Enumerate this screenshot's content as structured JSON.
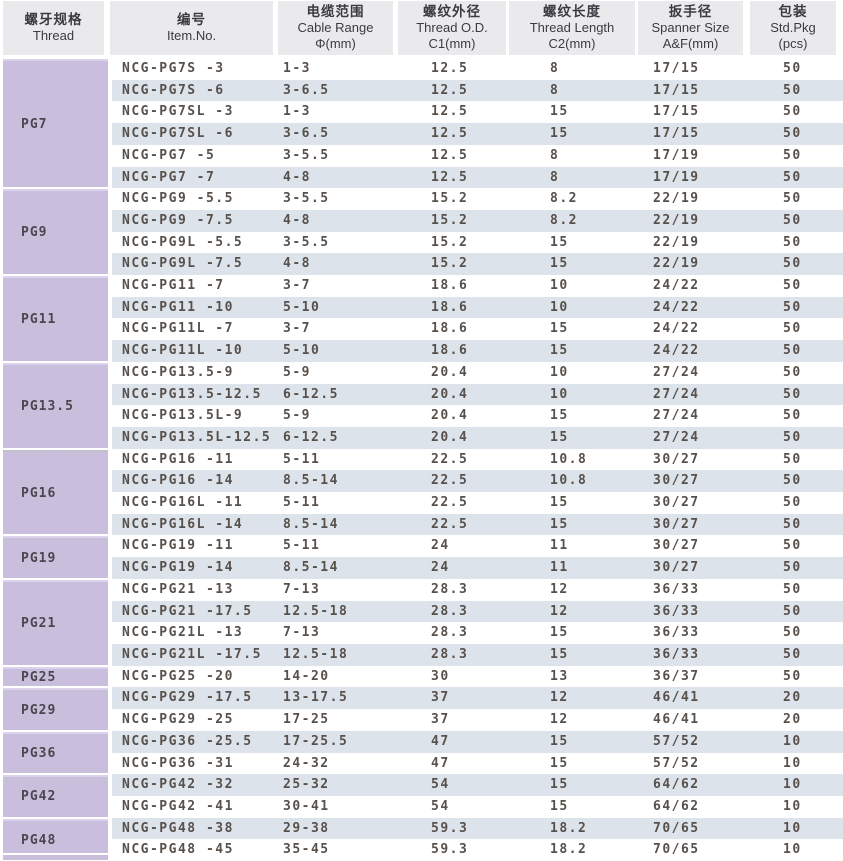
{
  "table": {
    "columns": [
      {
        "zh": "螺牙规格",
        "en": "Thread",
        "sub": ""
      },
      {
        "zh": "编号",
        "en": "Item.No.",
        "sub": ""
      },
      {
        "zh": "电缆范围",
        "en": "Cable Range",
        "sub": "Φ(mm)"
      },
      {
        "zh": "螺纹外径",
        "en": "Thread O.D.",
        "sub": "C1(mm)"
      },
      {
        "zh": "螺纹长度",
        "en": "Thread Length",
        "sub": "C2(mm)"
      },
      {
        "zh": "扳手径",
        "en": "Spanner Size",
        "sub": "A&F(mm)"
      },
      {
        "zh": "包装",
        "en": "Std.Pkg",
        "sub": "(pcs)"
      }
    ],
    "groups": [
      {
        "thread": "PG7",
        "rows": [
          [
            "NCG-PG7S -3",
            "1-3",
            "12.5",
            "8",
            "17/15",
            "50"
          ],
          [
            "NCG-PG7S -6",
            "3-6.5",
            "12.5",
            "8",
            "17/15",
            "50"
          ],
          [
            "NCG-PG7SL -3",
            "1-3",
            "12.5",
            "15",
            "17/15",
            "50"
          ],
          [
            "NCG-PG7SL -6",
            "3-6.5",
            "12.5",
            "15",
            "17/15",
            "50"
          ],
          [
            "NCG-PG7 -5",
            "3-5.5",
            "12.5",
            "8",
            "17/19",
            "50"
          ],
          [
            "NCG-PG7 -7",
            "4-8",
            "12.5",
            "8",
            "17/19",
            "50"
          ]
        ]
      },
      {
        "thread": "PG9",
        "rows": [
          [
            "NCG-PG9 -5.5",
            "3-5.5",
            "15.2",
            "8.2",
            "22/19",
            "50"
          ],
          [
            "NCG-PG9 -7.5",
            "4-8",
            "15.2",
            "8.2",
            "22/19",
            "50"
          ],
          [
            "NCG-PG9L -5.5",
            "3-5.5",
            "15.2",
            "15",
            "22/19",
            "50"
          ],
          [
            "NCG-PG9L -7.5",
            "4-8",
            "15.2",
            "15",
            "22/19",
            "50"
          ]
        ]
      },
      {
        "thread": "PG11",
        "rows": [
          [
            "NCG-PG11 -7",
            "3-7",
            "18.6",
            "10",
            "24/22",
            "50"
          ],
          [
            "NCG-PG11 -10",
            "5-10",
            "18.6",
            "10",
            "24/22",
            "50"
          ],
          [
            "NCG-PG11L -7",
            "3-7",
            "18.6",
            "15",
            "24/22",
            "50"
          ],
          [
            "NCG-PG11L -10",
            "5-10",
            "18.6",
            "15",
            "24/22",
            "50"
          ]
        ]
      },
      {
        "thread": "PG13.5",
        "rows": [
          [
            "NCG-PG13.5-9",
            "5-9",
            "20.4",
            "10",
            "27/24",
            "50"
          ],
          [
            "NCG-PG13.5-12.5",
            "6-12.5",
            "20.4",
            "10",
            "27/24",
            "50"
          ],
          [
            "NCG-PG13.5L-9",
            "5-9",
            "20.4",
            "15",
            "27/24",
            "50"
          ],
          [
            "NCG-PG13.5L-12.5",
            "6-12.5",
            "20.4",
            "15",
            "27/24",
            "50"
          ]
        ]
      },
      {
        "thread": "PG16",
        "dashed_top": true,
        "rows": [
          [
            "NCG-PG16 -11",
            "5-11",
            "22.5",
            "10.8",
            "30/27",
            "50"
          ],
          [
            "NCG-PG16 -14",
            "8.5-14",
            "22.5",
            "10.8",
            "30/27",
            "50"
          ],
          [
            "NCG-PG16L -11",
            "5-11",
            "22.5",
            "15",
            "30/27",
            "50"
          ],
          [
            "NCG-PG16L -14",
            "8.5-14",
            "22.5",
            "15",
            "30/27",
            "50"
          ]
        ]
      },
      {
        "thread": "PG19",
        "rows": [
          [
            "NCG-PG19 -11",
            "5-11",
            "24",
            "11",
            "30/27",
            "50"
          ],
          [
            "NCG-PG19 -14",
            "8.5-14",
            "24",
            "11",
            "30/27",
            "50"
          ]
        ]
      },
      {
        "thread": "PG21",
        "rows": [
          [
            "NCG-PG21 -13",
            "7-13",
            "28.3",
            "12",
            "36/33",
            "50"
          ],
          [
            "NCG-PG21 -17.5",
            "12.5-18",
            "28.3",
            "12",
            "36/33",
            "50"
          ],
          [
            "NCG-PG21L -13",
            "7-13",
            "28.3",
            "15",
            "36/33",
            "50"
          ],
          [
            "NCG-PG21L -17.5",
            "12.5-18",
            "28.3",
            "15",
            "36/33",
            "50"
          ]
        ]
      },
      {
        "thread": "PG25",
        "rows": [
          [
            "NCG-PG25 -20",
            "14-20",
            "30",
            "13",
            "36/37",
            "50"
          ]
        ]
      },
      {
        "thread": "PG29",
        "rows": [
          [
            "NCG-PG29 -17.5",
            "13-17.5",
            "37",
            "12",
            "46/41",
            "20"
          ],
          [
            "NCG-PG29 -25",
            "17-25",
            "37",
            "12",
            "46/41",
            "20"
          ]
        ]
      },
      {
        "thread": "PG36",
        "rows": [
          [
            "NCG-PG36 -25.5",
            "17-25.5",
            "47",
            "15",
            "57/52",
            "10"
          ],
          [
            "NCG-PG36 -31",
            "24-32",
            "47",
            "15",
            "57/52",
            "10"
          ]
        ]
      },
      {
        "thread": "PG42",
        "rows": [
          [
            "NCG-PG42 -32",
            "25-32",
            "54",
            "15",
            "64/62",
            "10"
          ],
          [
            "NCG-PG42 -41",
            "30-41",
            "54",
            "15",
            "64/62",
            "10"
          ]
        ]
      },
      {
        "thread": "PG48",
        "rows": [
          [
            "NCG-PG48 -38",
            "29-38",
            "59.3",
            "18.2",
            "70/65",
            "10"
          ],
          [
            "NCG-PG48 -45",
            "35-45",
            "59.3",
            "18.2",
            "70/65",
            "10"
          ]
        ]
      }
    ],
    "colors": {
      "header_bg": "#eaeaec",
      "group_bg": "#c9bfdc",
      "stripe_bg": "#dce3ea",
      "text": "#57504b"
    }
  }
}
